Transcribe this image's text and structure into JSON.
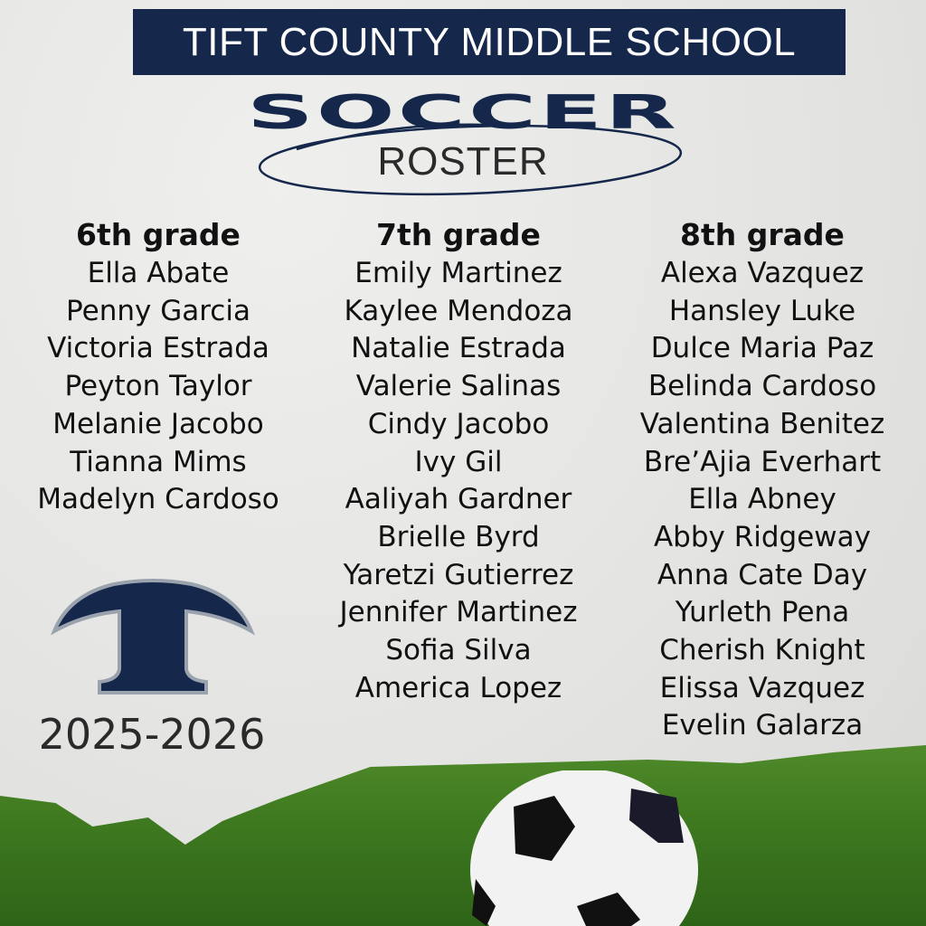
{
  "header": {
    "school": "TIFT COUNTY MIDDLE SCHOOL",
    "sport": "SOCCER",
    "subtitle": "ROSTER"
  },
  "colors": {
    "navy": "#15284b",
    "grass": "#3f7a20"
  },
  "grades": [
    {
      "label": "6th grade",
      "players": [
        "Ella Abate",
        "Penny Garcia",
        "Victoria Estrada",
        "Peyton Taylor",
        "Melanie Jacobo",
        "Tianna Mims",
        "Madelyn Cardoso"
      ]
    },
    {
      "label": "7th grade",
      "players": [
        "Emily Martinez",
        "Kaylee Mendoza",
        "Natalie Estrada",
        "Valerie Salinas",
        "Cindy Jacobo",
        "Ivy Gil",
        "Aaliyah Gardner",
        "Brielle Byrd",
        "Yaretzi Gutierrez",
        "Jennifer Martinez",
        "Sofia Silva",
        "America Lopez"
      ]
    },
    {
      "label": "8th grade",
      "players": [
        "Alexa Vazquez",
        "Hansley Luke",
        "Dulce Maria Paz",
        "Belinda Cardoso",
        "Valentina Benitez",
        "Bre’Ajia Everhart",
        "Ella Abney",
        "Abby Ridgeway",
        "Anna Cate Day",
        "Yurleth Pena",
        "Cherish Knight",
        "Elissa Vazquez",
        "Evelin Galarza"
      ]
    }
  ],
  "logo": {
    "letter": "T",
    "icon": "tift-t-logo"
  },
  "season": "2025-2026"
}
